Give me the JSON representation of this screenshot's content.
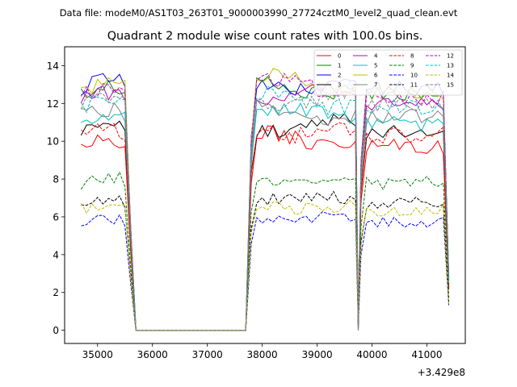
{
  "chart_data": {
    "type": "line",
    "suptitle": "Data file: modeM0/AS1T03_263T01_9000003990_27724cztM0_level2_quad_clean.evt",
    "title": "Quadrant 2 module wise count rates with 100.0s bins.",
    "xlabel": "",
    "ylabel": "",
    "x_offset_label": "+3.429e8",
    "xlim": [
      34400,
      41700
    ],
    "ylim": [
      -0.7,
      15.0
    ],
    "xticks": [
      35000,
      36000,
      37000,
      38000,
      39000,
      40000,
      41000
    ],
    "yticks": [
      0,
      2,
      4,
      6,
      8,
      10,
      12,
      14
    ],
    "legend_position": "top-right",
    "x_segments": [
      [
        34700,
        35600
      ],
      [
        37800,
        39700
      ],
      [
        39800,
        41400
      ]
    ],
    "gap_points": [
      35700,
      37700
    ],
    "series": [
      {
        "name": "0",
        "color": "#ff0000",
        "dash": "solid",
        "level": 9.7,
        "amp": 0.45,
        "seed": 1
      },
      {
        "name": "1",
        "color": "#008000",
        "dash": "solid",
        "level": 12.5,
        "amp": 0.4,
        "seed": 2
      },
      {
        "name": "2",
        "color": "#0000ff",
        "dash": "solid",
        "level": 12.8,
        "amp": 0.4,
        "seed": 3
      },
      {
        "name": "3",
        "color": "#000000",
        "dash": "solid",
        "level": 10.5,
        "amp": 0.35,
        "seed": 4
      },
      {
        "name": "4",
        "color": "#bf00bf",
        "dash": "solid",
        "level": 12.1,
        "amp": 0.45,
        "seed": 5
      },
      {
        "name": "5",
        "color": "#00bfbf",
        "dash": "solid",
        "level": 10.9,
        "amp": 0.45,
        "seed": 6
      },
      {
        "name": "6",
        "color": "#bfbf00",
        "dash": "solid",
        "level": 12.6,
        "amp": 0.4,
        "seed": 7
      },
      {
        "name": "7",
        "color": "#808080",
        "dash": "solid",
        "level": 11.3,
        "amp": 0.45,
        "seed": 8
      },
      {
        "name": "8",
        "color": "#ff0000",
        "dash": "dashed",
        "level": 10.3,
        "amp": 0.45,
        "seed": 9
      },
      {
        "name": "9",
        "color": "#008000",
        "dash": "dashed",
        "level": 7.8,
        "amp": 0.35,
        "seed": 10
      },
      {
        "name": "10",
        "color": "#0000ff",
        "dash": "dashed",
        "level": 5.7,
        "amp": 0.3,
        "seed": 11
      },
      {
        "name": "11",
        "color": "#000000",
        "dash": "dashed",
        "level": 6.7,
        "amp": 0.35,
        "seed": 12
      },
      {
        "name": "12",
        "color": "#bf00bf",
        "dash": "dashed",
        "level": 12.3,
        "amp": 0.45,
        "seed": 13
      },
      {
        "name": "13",
        "color": "#00bfbf",
        "dash": "dashed",
        "level": 11.8,
        "amp": 0.45,
        "seed": 14
      },
      {
        "name": "14",
        "color": "#bfbf00",
        "dash": "dashed",
        "level": 6.4,
        "amp": 0.35,
        "seed": 15
      },
      {
        "name": "15",
        "color": "#808080",
        "dash": "dashed",
        "level": 12.0,
        "amp": 0.45,
        "seed": 16
      }
    ]
  }
}
